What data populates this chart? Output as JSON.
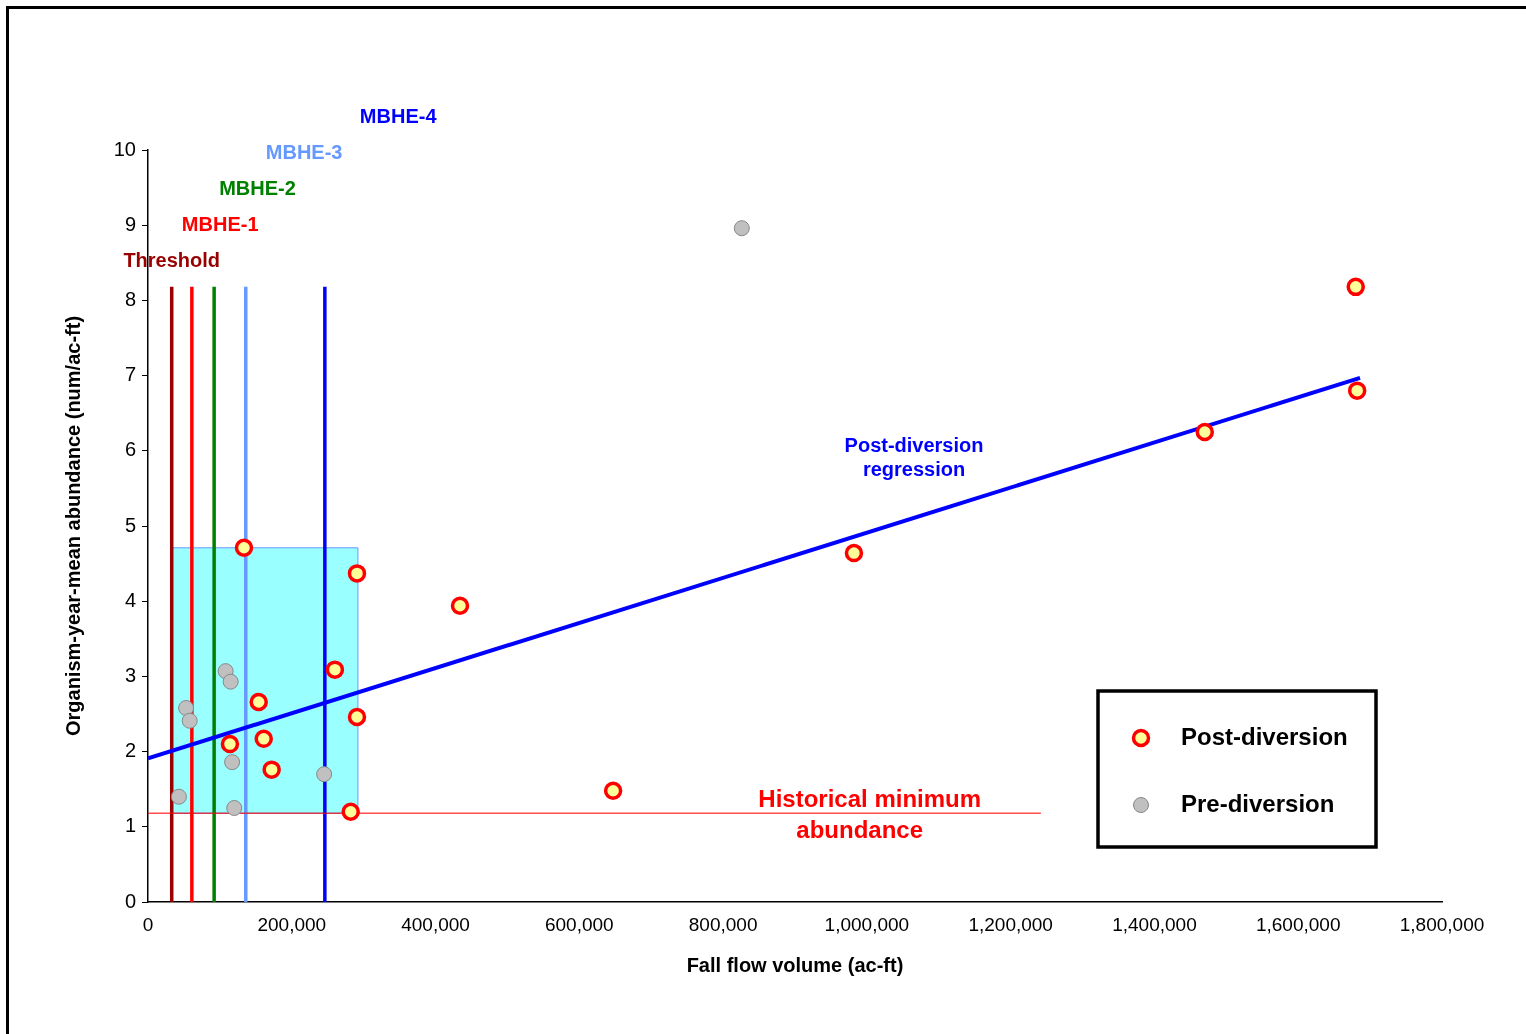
{
  "chart_data": {
    "type": "scatter",
    "xlabel": "Fall flow volume (ac-ft)",
    "ylabel": "Organism-year-mean abundance (num/ac-ft)",
    "xlim": [
      0,
      1800000
    ],
    "xticks": [
      0,
      {
        "value": 200000,
        "label": "200,000"
      },
      {
        "value": 400000,
        "label": "400,000"
      },
      {
        "value": 600000,
        "label": "600,000"
      },
      {
        "value": 800000,
        "label": "800,000"
      },
      {
        "value": 1000000,
        "label": "1,000,000"
      },
      {
        "value": 1200000,
        "label": "1,200,000"
      },
      {
        "value": 1400000,
        "label": "1,400,000"
      },
      {
        "value": 1600000,
        "label": "1,600,000"
      },
      {
        "value": 1800000,
        "label": "1,800,000"
      }
    ],
    "ylim": [
      0,
      10
    ],
    "yticks": [
      0,
      1,
      2,
      3,
      4,
      5,
      6,
      7,
      8,
      9,
      10
    ],
    "grid": false,
    "legend": "bottom right",
    "marker": "circle",
    "series": [
      {
        "name": "Post-diversion",
        "color": "#ff0000",
        "x": [
          133500,
          290700,
          434000,
          260000,
          154000,
          290700,
          114000,
          161000,
          172000,
          282000,
          647000,
          982000,
          1470000,
          1680000,
          1682000
        ],
        "values": [
          4.71,
          4.37,
          3.94,
          3.09,
          2.66,
          2.46,
          2.1,
          2.17,
          1.76,
          1.2,
          1.48,
          4.64,
          6.25,
          8.18,
          6.8
        ]
      },
      {
        "name": "Pre-diversion",
        "color": "#c0c0c0",
        "x": [
          826000,
          108000,
          115000,
          53000,
          58000,
          117000,
          43000,
          120000,
          245000
        ],
        "values": [
          8.96,
          3.07,
          2.93,
          2.58,
          2.41,
          1.86,
          1.4,
          1.25,
          1.7
        ]
      },
      {
        "name": "Post-diversion regression",
        "type": "line",
        "marker": "none",
        "color": "#0000ff",
        "x": [
          0,
          1686000
        ],
        "values": [
          1.91,
          6.97
        ]
      }
    ],
    "ref_lines": [
      {
        "axis": "x",
        "value": 33000,
        "label": "Threshold",
        "color": "#990000"
      },
      {
        "axis": "x",
        "value": 61000,
        "label": "MBHE-1",
        "color": "#ff0000"
      },
      {
        "axis": "x",
        "value": 92000,
        "label": "MBHE-2",
        "color": "#008000"
      },
      {
        "axis": "x",
        "value": 136000,
        "label": "MBHE-3",
        "color": "#6699ff"
      },
      {
        "axis": "x",
        "value": 246000,
        "label": "MBHE-4",
        "color": "#0000ff"
      },
      {
        "axis": "y",
        "value": 1.18,
        "label": "Historical minimum abundance",
        "color": "#ff0000"
      }
    ],
    "bands": [
      {
        "axis": "x",
        "from": 33000,
        "to": 292000,
        "color": "#99ffff"
      }
    ]
  }
}
